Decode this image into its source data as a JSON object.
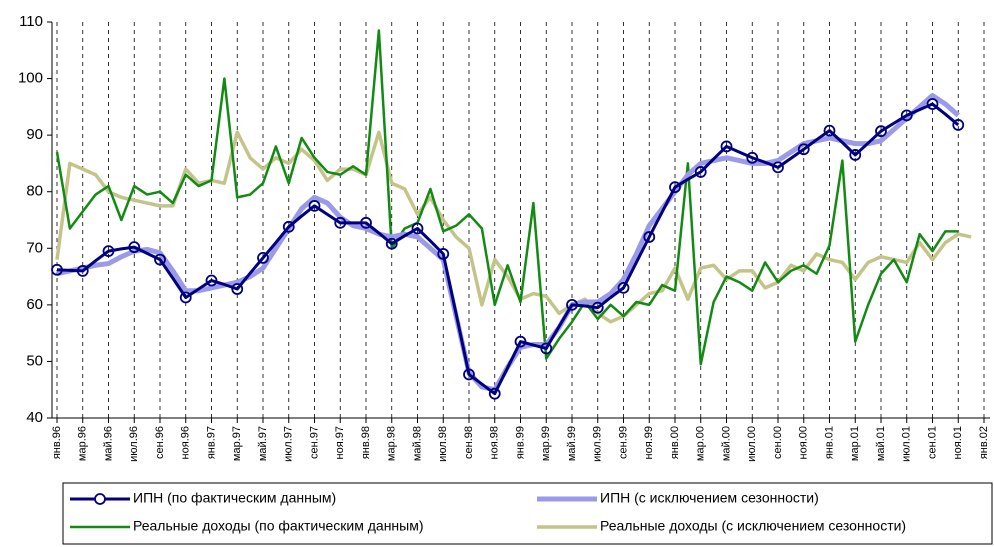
{
  "chart_data": {
    "type": "line",
    "categories": [
      "янв.96",
      null,
      "мар.96",
      null,
      "май.96",
      null,
      "июл.96",
      null,
      "сен.96",
      null,
      "ноя.96",
      null,
      "янв.97",
      null,
      "мар.97",
      null,
      "май.97",
      null,
      "июл.97",
      null,
      "сен.97",
      null,
      "ноя.97",
      null,
      "янв.98",
      null,
      "мар.98",
      null,
      "май.98",
      null,
      "июл.98",
      null,
      "сен.98",
      null,
      "ноя.98",
      null,
      "янв.99",
      null,
      "мар.99",
      null,
      "май.99",
      null,
      "июл.99",
      null,
      "сен.99",
      null,
      "ноя.99",
      null,
      "янв.00",
      null,
      "мар.00",
      null,
      "май.00",
      null,
      "июл.00",
      null,
      "сен.00",
      null,
      "ноя.00",
      null,
      "янв.01",
      null,
      "мар.01",
      null,
      "май.01",
      null,
      "июл.01",
      null,
      "сен.01",
      null,
      "ноя.01",
      null,
      "янв.02"
    ],
    "series": [
      {
        "name": "ИПН (по фактическим данным)",
        "color": "#000080",
        "marker": "circle",
        "values": [
          66.2,
          66.1,
          66,
          67.8,
          69.5,
          69.9,
          70.2,
          69.1,
          68,
          64.7,
          61.3,
          62.8,
          64.3,
          63.6,
          62.8,
          65.6,
          68.3,
          71,
          73.8,
          75.7,
          77.5,
          76,
          74.5,
          74.5,
          74.5,
          72.7,
          70.8,
          72.2,
          73.5,
          71.3,
          69,
          58.4,
          47.7,
          46,
          44.3,
          48.9,
          53.5,
          52.9,
          52.3,
          56.2,
          60,
          59.8,
          59.5,
          61.3,
          63,
          67.5,
          72,
          76.4,
          80.8,
          82.2,
          83.5,
          85.8,
          88,
          87,
          86,
          85.2,
          84.3,
          85.9,
          87.5,
          89.2,
          90.8,
          88.7,
          86.5,
          88.6,
          90.7,
          92.1,
          93.5,
          94.5,
          95.5,
          93.7,
          91.8,
          null,
          null
        ]
      },
      {
        "name": "ИПН (с исключением сезонности)",
        "color": "#9a9ae8",
        "values": [
          65.5,
          66,
          66.5,
          67,
          67.3,
          68.5,
          69.5,
          69.8,
          69.2,
          66,
          62.5,
          62.5,
          63,
          63.5,
          64,
          65,
          66.5,
          70,
          73.5,
          77,
          79,
          78,
          75.5,
          74,
          73.5,
          72.5,
          72,
          72.5,
          72,
          70,
          68,
          58,
          48,
          45.5,
          45,
          49,
          52.5,
          53,
          53,
          56,
          60,
          60.5,
          60.5,
          62,
          64.5,
          69,
          74,
          77,
          80,
          83,
          85,
          85.5,
          86,
          85.5,
          85,
          85,
          85.5,
          87,
          88.5,
          89,
          89.5,
          89,
          88.5,
          88.5,
          89,
          91,
          93,
          95,
          97,
          95.5,
          93.5,
          null,
          null
        ]
      },
      {
        "name": "Реальные доходы (по фактическим данным)",
        "color": "#138a13",
        "values": [
          87,
          73.5,
          76.5,
          79.5,
          81,
          75,
          81,
          79.5,
          80,
          78,
          83,
          81,
          82,
          100,
          79,
          79.5,
          81.5,
          88,
          81.5,
          89.5,
          86,
          83.5,
          83,
          84.5,
          83,
          108.5,
          70,
          73.5,
          74.5,
          80.5,
          73,
          74,
          76,
          73.5,
          60,
          67,
          60.5,
          78,
          50.5,
          54,
          57,
          60.5,
          57.5,
          60,
          58,
          60.5,
          60,
          63.5,
          62.5,
          85,
          49.5,
          60.5,
          65,
          64,
          62.5,
          67.5,
          64,
          66,
          67,
          65.5,
          70.5,
          85.5,
          53.5,
          60,
          65.5,
          68,
          64,
          72.5,
          69.5,
          73,
          73,
          null,
          null
        ]
      },
      {
        "name": "Реальные доходы (с исключением сезонности)",
        "color": "#c4c48a",
        "values": [
          68,
          85,
          84,
          83,
          80,
          79,
          78.5,
          78,
          77.5,
          77.5,
          84,
          81.5,
          82,
          81.5,
          90.5,
          86,
          84,
          86,
          85,
          87.5,
          85.5,
          82,
          84,
          84,
          83,
          90.5,
          81.5,
          80.5,
          76,
          79,
          75,
          72,
          70,
          60,
          68,
          65,
          61,
          62,
          61.5,
          58.5,
          60,
          61,
          58.5,
          57,
          58,
          60,
          62,
          62.5,
          66.5,
          61,
          66.5,
          67,
          64.5,
          66,
          66,
          63,
          64,
          67,
          66,
          69,
          68,
          67.5,
          64.5,
          67.5,
          68.5,
          68,
          67.5,
          71,
          68,
          71,
          72.5,
          72,
          null
        ]
      }
    ],
    "ylim": [
      40,
      110
    ],
    "yticks": [
      40,
      50,
      60,
      70,
      80,
      90,
      100,
      110
    ],
    "grid": "x",
    "legend": "bottom"
  }
}
